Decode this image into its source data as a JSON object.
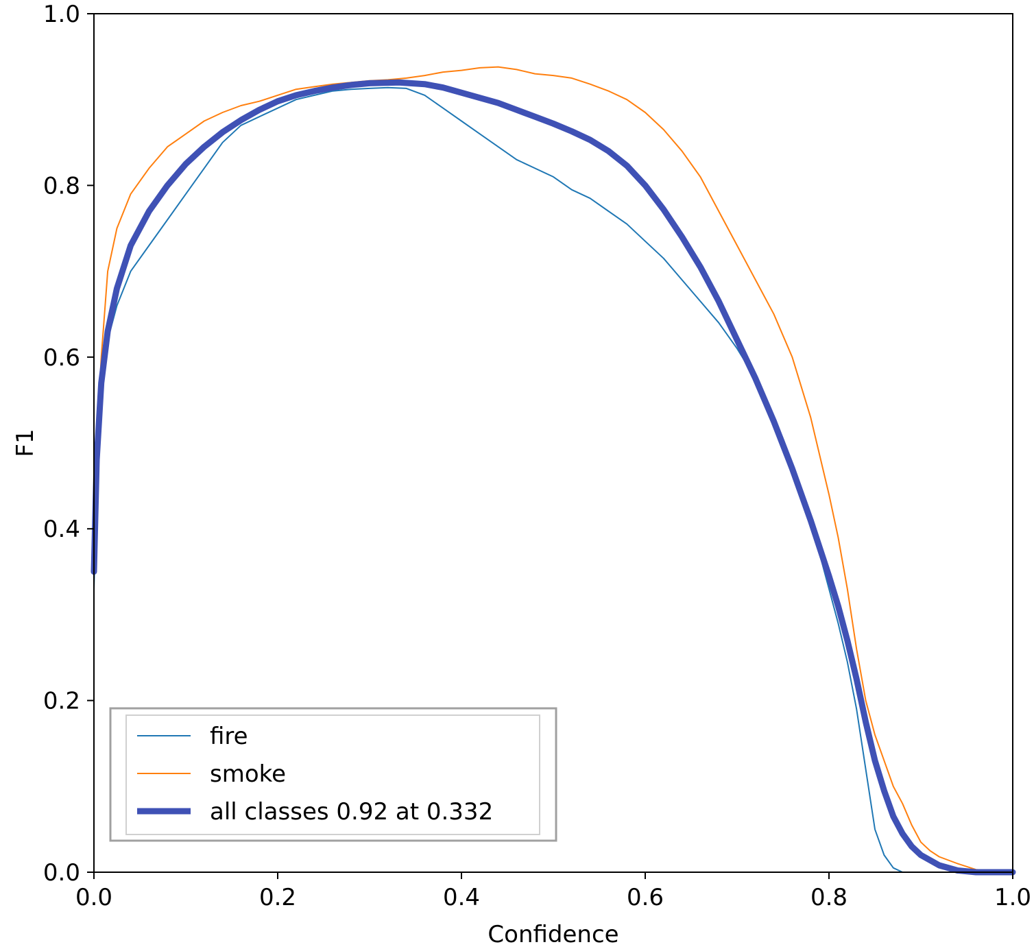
{
  "chart_data": {
    "type": "line",
    "title": "",
    "xlabel": "Confidence",
    "ylabel": "F1",
    "xlim": [
      0.0,
      1.0
    ],
    "ylim": [
      0.0,
      1.0
    ],
    "xticks": [
      "0.0",
      "0.2",
      "0.4",
      "0.6",
      "0.8",
      "1.0"
    ],
    "yticks": [
      "0.0",
      "0.2",
      "0.4",
      "0.6",
      "0.8",
      "1.0"
    ],
    "grid": false,
    "legend_position": "bottom-left",
    "series": [
      {
        "name": "fire",
        "color": "#1f77b4",
        "x": [
          0.0,
          0.003,
          0.008,
          0.015,
          0.025,
          0.04,
          0.06,
          0.08,
          0.1,
          0.12,
          0.14,
          0.16,
          0.18,
          0.2,
          0.22,
          0.24,
          0.26,
          0.28,
          0.3,
          0.32,
          0.34,
          0.36,
          0.38,
          0.4,
          0.42,
          0.44,
          0.46,
          0.48,
          0.5,
          0.52,
          0.54,
          0.56,
          0.58,
          0.6,
          0.62,
          0.64,
          0.66,
          0.68,
          0.7,
          0.72,
          0.74,
          0.75,
          0.76,
          0.77,
          0.78,
          0.79,
          0.8,
          0.81,
          0.82,
          0.83,
          0.84,
          0.85,
          0.86,
          0.87,
          0.88,
          0.89,
          0.9,
          0.92,
          0.95,
          1.0
        ],
        "values": [
          0.33,
          0.45,
          0.55,
          0.62,
          0.66,
          0.7,
          0.73,
          0.76,
          0.79,
          0.82,
          0.85,
          0.87,
          0.88,
          0.89,
          0.9,
          0.905,
          0.91,
          0.912,
          0.913,
          0.914,
          0.913,
          0.905,
          0.89,
          0.875,
          0.86,
          0.845,
          0.83,
          0.82,
          0.81,
          0.795,
          0.785,
          0.77,
          0.755,
          0.735,
          0.715,
          0.69,
          0.665,
          0.64,
          0.61,
          0.575,
          0.53,
          0.505,
          0.475,
          0.445,
          0.41,
          0.37,
          0.33,
          0.29,
          0.245,
          0.19,
          0.12,
          0.05,
          0.02,
          0.005,
          0.0,
          0.0,
          0.0,
          0.0,
          0.0,
          0.0
        ]
      },
      {
        "name": "smoke",
        "color": "#ff7f0e",
        "x": [
          0.0,
          0.003,
          0.008,
          0.015,
          0.025,
          0.04,
          0.06,
          0.08,
          0.1,
          0.12,
          0.14,
          0.16,
          0.18,
          0.2,
          0.22,
          0.24,
          0.26,
          0.28,
          0.3,
          0.32,
          0.34,
          0.36,
          0.38,
          0.4,
          0.42,
          0.44,
          0.46,
          0.48,
          0.5,
          0.52,
          0.54,
          0.56,
          0.58,
          0.6,
          0.62,
          0.64,
          0.66,
          0.68,
          0.7,
          0.72,
          0.74,
          0.76,
          0.78,
          0.8,
          0.81,
          0.82,
          0.83,
          0.84,
          0.85,
          0.86,
          0.87,
          0.88,
          0.89,
          0.9,
          0.91,
          0.92,
          0.94,
          0.96,
          1.0
        ],
        "values": [
          0.35,
          0.5,
          0.6,
          0.7,
          0.75,
          0.79,
          0.82,
          0.845,
          0.86,
          0.875,
          0.885,
          0.893,
          0.898,
          0.905,
          0.912,
          0.915,
          0.918,
          0.92,
          0.922,
          0.923,
          0.925,
          0.928,
          0.932,
          0.934,
          0.937,
          0.938,
          0.935,
          0.93,
          0.928,
          0.925,
          0.918,
          0.91,
          0.9,
          0.885,
          0.865,
          0.84,
          0.81,
          0.77,
          0.73,
          0.69,
          0.65,
          0.6,
          0.53,
          0.44,
          0.39,
          0.33,
          0.26,
          0.2,
          0.16,
          0.13,
          0.1,
          0.08,
          0.055,
          0.035,
          0.025,
          0.018,
          0.01,
          0.003,
          0.0
        ]
      },
      {
        "name": "all classes 0.92 at 0.332",
        "color": "#3f51b5",
        "x": [
          0.0,
          0.003,
          0.008,
          0.015,
          0.025,
          0.04,
          0.06,
          0.08,
          0.1,
          0.12,
          0.14,
          0.16,
          0.18,
          0.2,
          0.22,
          0.24,
          0.26,
          0.28,
          0.3,
          0.332,
          0.36,
          0.38,
          0.4,
          0.42,
          0.44,
          0.46,
          0.48,
          0.5,
          0.52,
          0.54,
          0.56,
          0.58,
          0.6,
          0.62,
          0.64,
          0.66,
          0.68,
          0.7,
          0.72,
          0.74,
          0.76,
          0.78,
          0.8,
          0.81,
          0.82,
          0.83,
          0.84,
          0.85,
          0.86,
          0.87,
          0.88,
          0.89,
          0.9,
          0.92,
          0.94,
          0.96,
          1.0
        ],
        "values": [
          0.35,
          0.48,
          0.57,
          0.63,
          0.68,
          0.73,
          0.77,
          0.8,
          0.825,
          0.845,
          0.862,
          0.876,
          0.888,
          0.898,
          0.905,
          0.91,
          0.914,
          0.917,
          0.919,
          0.92,
          0.918,
          0.914,
          0.908,
          0.902,
          0.896,
          0.888,
          0.88,
          0.872,
          0.863,
          0.853,
          0.84,
          0.823,
          0.8,
          0.772,
          0.74,
          0.705,
          0.665,
          0.62,
          0.575,
          0.525,
          0.47,
          0.41,
          0.345,
          0.31,
          0.27,
          0.225,
          0.175,
          0.13,
          0.095,
          0.065,
          0.045,
          0.03,
          0.02,
          0.008,
          0.002,
          0.0,
          0.0
        ]
      }
    ]
  }
}
